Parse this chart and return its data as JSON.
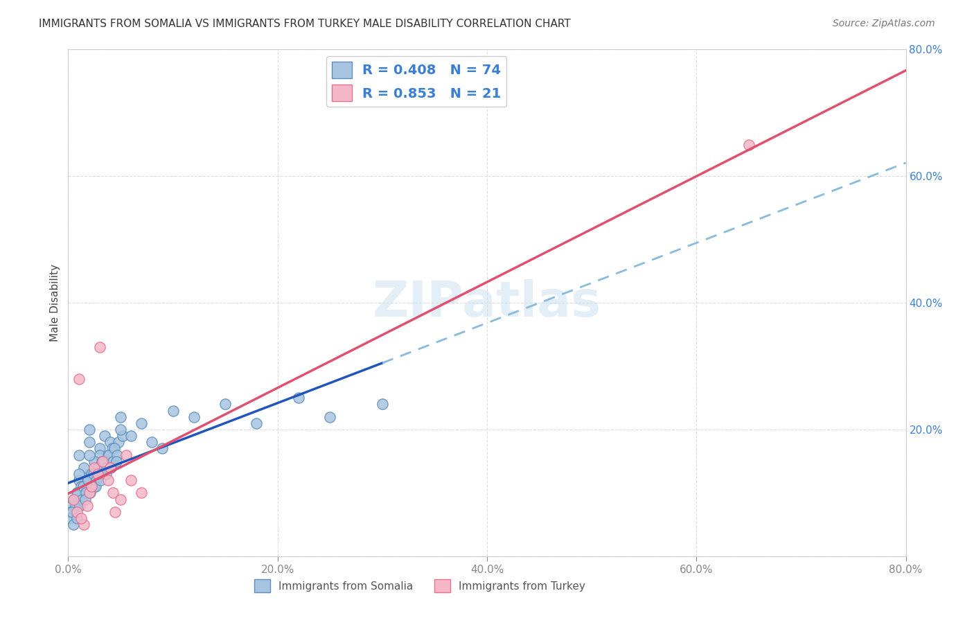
{
  "title": "IMMIGRANTS FROM SOMALIA VS IMMIGRANTS FROM TURKEY MALE DISABILITY CORRELATION CHART",
  "source": "Source: ZipAtlas.com",
  "ylabel": "Male Disability",
  "xlim": [
    0.0,
    0.8
  ],
  "ylim": [
    0.0,
    0.8
  ],
  "ytick_positions": [
    0.0,
    0.2,
    0.4,
    0.6,
    0.8
  ],
  "ytick_labels": [
    "",
    "20.0%",
    "40.0%",
    "60.0%",
    "80.0%"
  ],
  "xtick_positions": [
    0.0,
    0.2,
    0.4,
    0.6,
    0.8
  ],
  "xtick_labels": [
    "0.0%",
    "20.0%",
    "40.0%",
    "60.0%",
    "80.0%"
  ],
  "somalia_color": "#a8c4e0",
  "somalia_edge_color": "#5b8fbd",
  "turkey_color": "#f4b8c8",
  "turkey_edge_color": "#e87090",
  "somalia_R": 0.408,
  "somalia_N": 74,
  "turkey_R": 0.853,
  "turkey_N": 21,
  "legend_text_color": "#3b7fd4",
  "somalia_line_color": "#2255bb",
  "somalia_dash_color": "#88bbdd",
  "turkey_line_color": "#e05070",
  "somalia_scatter_x": [
    0.02,
    0.01,
    0.03,
    0.04,
    0.01,
    0.02,
    0.015,
    0.025,
    0.03,
    0.035,
    0.01,
    0.005,
    0.02,
    0.03,
    0.04,
    0.05,
    0.015,
    0.025,
    0.01,
    0.02,
    0.008,
    0.012,
    0.018,
    0.022,
    0.028,
    0.032,
    0.038,
    0.042,
    0.048,
    0.052,
    0.003,
    0.006,
    0.009,
    0.014,
    0.019,
    0.024,
    0.029,
    0.034,
    0.039,
    0.044,
    0.002,
    0.007,
    0.013,
    0.017,
    0.023,
    0.027,
    0.033,
    0.037,
    0.043,
    0.047,
    0.001,
    0.004,
    0.011,
    0.016,
    0.021,
    0.026,
    0.031,
    0.036,
    0.041,
    0.046,
    0.05,
    0.06,
    0.07,
    0.08,
    0.09,
    0.1,
    0.12,
    0.15,
    0.18,
    0.22,
    0.25,
    0.3,
    0.005,
    0.008
  ],
  "somalia_scatter_y": [
    0.18,
    0.16,
    0.14,
    0.15,
    0.12,
    0.13,
    0.1,
    0.11,
    0.17,
    0.19,
    0.08,
    0.09,
    0.2,
    0.16,
    0.18,
    0.22,
    0.14,
    0.15,
    0.13,
    0.16,
    0.1,
    0.11,
    0.12,
    0.13,
    0.14,
    0.15,
    0.16,
    0.17,
    0.18,
    0.19,
    0.08,
    0.09,
    0.1,
    0.11,
    0.12,
    0.13,
    0.14,
    0.15,
    0.16,
    0.17,
    0.07,
    0.08,
    0.09,
    0.1,
    0.11,
    0.12,
    0.13,
    0.14,
    0.15,
    0.16,
    0.06,
    0.07,
    0.08,
    0.09,
    0.1,
    0.11,
    0.12,
    0.13,
    0.14,
    0.15,
    0.2,
    0.19,
    0.21,
    0.18,
    0.17,
    0.23,
    0.22,
    0.24,
    0.21,
    0.25,
    0.22,
    0.24,
    0.05,
    0.06
  ],
  "turkey_scatter_x": [
    0.01,
    0.02,
    0.03,
    0.015,
    0.025,
    0.005,
    0.008,
    0.012,
    0.018,
    0.022,
    0.028,
    0.033,
    0.038,
    0.043,
    0.055,
    0.04,
    0.045,
    0.05,
    0.06,
    0.07,
    0.65
  ],
  "turkey_scatter_y": [
    0.28,
    0.1,
    0.33,
    0.05,
    0.14,
    0.09,
    0.07,
    0.06,
    0.08,
    0.11,
    0.13,
    0.15,
    0.12,
    0.1,
    0.16,
    0.14,
    0.07,
    0.09,
    0.12,
    0.1,
    0.65
  ],
  "grid_color": "#dddddd",
  "background_color": "#ffffff"
}
